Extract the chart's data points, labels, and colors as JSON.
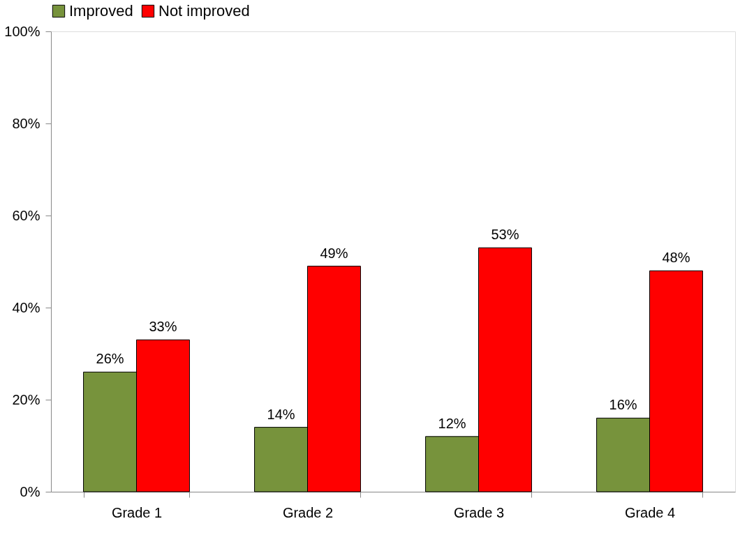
{
  "chart_data": {
    "type": "bar",
    "categories": [
      "Grade 1",
      "Grade 2",
      "Grade 3",
      "Grade 4"
    ],
    "series": [
      {
        "name": "Improved",
        "color": "#77933c",
        "values": [
          26,
          14,
          12,
          16
        ],
        "value_labels": [
          "26%",
          "14%",
          "12%",
          "16%"
        ]
      },
      {
        "name": "Not improved",
        "color": "#ff0000",
        "values": [
          33,
          49,
          53,
          48
        ],
        "value_labels": [
          "33%",
          "49%",
          "53%",
          "48%"
        ]
      }
    ],
    "ylim": [
      0,
      100
    ],
    "yticks": [
      {
        "value": 0,
        "label": "0%"
      },
      {
        "value": 20,
        "label": "20%"
      },
      {
        "value": 40,
        "label": "40%"
      },
      {
        "value": 60,
        "label": "60%"
      },
      {
        "value": 80,
        "label": "80%"
      },
      {
        "value": 100,
        "label": "100%"
      }
    ],
    "grid": false,
    "legend": "top"
  }
}
